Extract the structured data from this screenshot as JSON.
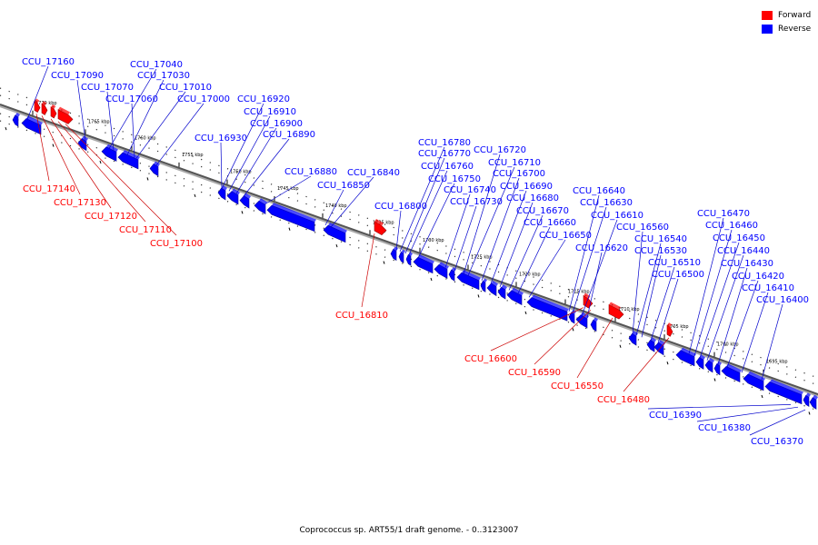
{
  "caption": "Coprococcus sp. ART55/1 draft genome. - 0..3123007",
  "legend": [
    {
      "label": "Forward",
      "color": "#ff0000"
    },
    {
      "label": "Reverse",
      "color": "#0000ff"
    }
  ],
  "colors": {
    "forward": "#ff0000",
    "reverse": "#0000ff",
    "backbone": "#888888",
    "forward_line": "#cc0000",
    "reverse_line": "#0000cc"
  },
  "ticks": [
    "1770 kbp",
    "1765 kbp",
    "1760 kbp",
    "1755 kbp",
    "1750 kbp",
    "1745 kbp",
    "1740 kbp",
    "1735 kbp",
    "1730 kbp",
    "1725 kbp",
    "1720 kbp",
    "1715 kbp",
    "1710 kbp",
    "1705 kbp",
    "1700 kbp",
    "1695 kbp"
  ],
  "forward_genes": [
    "CCU_17140",
    "CCU_17130",
    "CCU_17120",
    "CCU_17110",
    "CCU_17100",
    "CCU_16810",
    "CCU_16600",
    "CCU_16590",
    "CCU_16550",
    "CCU_16480"
  ],
  "reverse_genes": [
    "CCU_17160",
    "CCU_17090",
    "CCU_17040",
    "CCU_17030",
    "CCU_17070",
    "CCU_17010",
    "CCU_17060",
    "CCU_17000",
    "CCU_16920",
    "CCU_16910",
    "CCU_16900",
    "CCU_16930",
    "CCU_16890",
    "CCU_16880",
    "CCU_16840",
    "CCU_16850",
    "CCU_16800",
    "CCU_16780",
    "CCU_16770",
    "CCU_16760",
    "CCU_16720",
    "CCU_16710",
    "CCU_16750",
    "CCU_16700",
    "CCU_16740",
    "CCU_16690",
    "CCU_16730",
    "CCU_16680",
    "CCU_16670",
    "CCU_16660",
    "CCU_16650",
    "CCU_16640",
    "CCU_16630",
    "CCU_16610",
    "CCU_16620",
    "CCU_16560",
    "CCU_16540",
    "CCU_16530",
    "CCU_16510",
    "CCU_16500",
    "CCU_16470",
    "CCU_16460",
    "CCU_16450",
    "CCU_16440",
    "CCU_16430",
    "CCU_16420",
    "CCU_16410",
    "CCU_16400",
    "CCU_16390",
    "CCU_16380",
    "CCU_16370"
  ]
}
